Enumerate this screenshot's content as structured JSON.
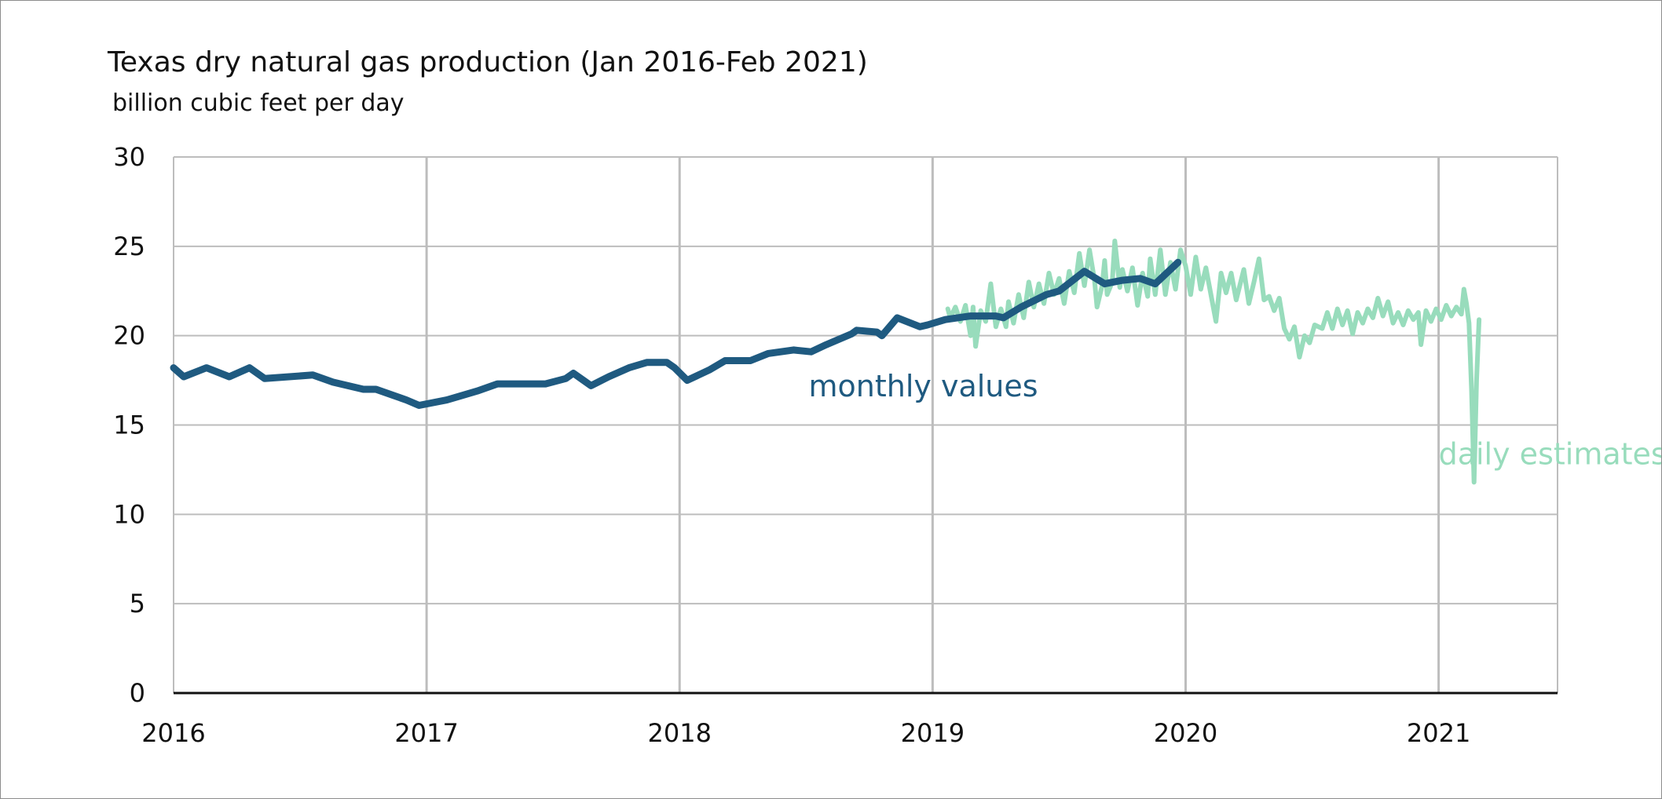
{
  "chart_data": {
    "type": "line",
    "title": "Texas dry natural gas production (Jan 2016-Feb 2021)",
    "subtitle": "billion cubic feet per day",
    "xlabel": "",
    "ylabel": "",
    "xlim": [
      2016.0,
      2021.47
    ],
    "ylim": [
      0,
      30
    ],
    "x_ticks": [
      "2016",
      "2017",
      "2018",
      "2019",
      "2020",
      "2021"
    ],
    "y_ticks": [
      "0",
      "5",
      "10",
      "15",
      "20",
      "25",
      "30"
    ],
    "grid": true,
    "colors": {
      "monthly": "#1f5a80",
      "daily": "#98dcbc",
      "grid": "#bdbdbd",
      "axis": "#111111"
    },
    "annotations": [
      {
        "text": "monthly values",
        "series": "monthly",
        "x": 2018.51,
        "y": 16.6
      },
      {
        "text": "daily estimates",
        "series": "daily",
        "x": 2021.0,
        "y": 12.8
      }
    ],
    "series": [
      {
        "key": "monthly",
        "points": [
          [
            2016.0,
            18.2
          ],
          [
            2016.04,
            17.7
          ],
          [
            2016.13,
            18.2
          ],
          [
            2016.22,
            17.7
          ],
          [
            2016.3,
            18.2
          ],
          [
            2016.36,
            17.6
          ],
          [
            2016.55,
            17.8
          ],
          [
            2016.63,
            17.4
          ],
          [
            2016.75,
            17.0
          ],
          [
            2016.8,
            17.0
          ],
          [
            2016.92,
            16.4
          ],
          [
            2016.97,
            16.1
          ],
          [
            2017.08,
            16.4
          ],
          [
            2017.2,
            16.9
          ],
          [
            2017.28,
            17.3
          ],
          [
            2017.35,
            17.3
          ],
          [
            2017.47,
            17.3
          ],
          [
            2017.55,
            17.6
          ],
          [
            2017.58,
            17.9
          ],
          [
            2017.62,
            17.5
          ],
          [
            2017.65,
            17.2
          ],
          [
            2017.72,
            17.7
          ],
          [
            2017.8,
            18.2
          ],
          [
            2017.87,
            18.5
          ],
          [
            2017.95,
            18.5
          ],
          [
            2017.98,
            18.2
          ],
          [
            2018.03,
            17.5
          ],
          [
            2018.12,
            18.1
          ],
          [
            2018.18,
            18.6
          ],
          [
            2018.28,
            18.6
          ],
          [
            2018.35,
            19.0
          ],
          [
            2018.45,
            19.2
          ],
          [
            2018.52,
            19.1
          ],
          [
            2018.58,
            19.5
          ],
          [
            2018.68,
            20.1
          ],
          [
            2018.7,
            20.3
          ],
          [
            2018.78,
            20.2
          ],
          [
            2018.8,
            20.0
          ],
          [
            2018.86,
            21.0
          ],
          [
            2018.95,
            20.5
          ],
          [
            2018.98,
            20.6
          ],
          [
            2019.05,
            20.9
          ],
          [
            2019.15,
            21.1
          ],
          [
            2019.25,
            21.1
          ],
          [
            2019.28,
            21.0
          ],
          [
            2019.35,
            21.6
          ],
          [
            2019.45,
            22.3
          ],
          [
            2019.5,
            22.5
          ],
          [
            2019.6,
            23.6
          ],
          [
            2019.68,
            22.9
          ],
          [
            2019.75,
            23.1
          ],
          [
            2019.82,
            23.2
          ],
          [
            2019.88,
            22.9
          ],
          [
            2019.97,
            24.1
          ]
        ]
      },
      {
        "key": "daily",
        "points": [
          [
            2019.06,
            21.5
          ],
          [
            2019.07,
            21.0
          ],
          [
            2019.09,
            21.6
          ],
          [
            2019.11,
            20.8
          ],
          [
            2019.13,
            21.7
          ],
          [
            2019.15,
            20.0
          ],
          [
            2019.16,
            21.6
          ],
          [
            2019.17,
            19.4
          ],
          [
            2019.19,
            21.4
          ],
          [
            2019.21,
            20.8
          ],
          [
            2019.23,
            22.9
          ],
          [
            2019.25,
            20.5
          ],
          [
            2019.27,
            21.5
          ],
          [
            2019.29,
            20.5
          ],
          [
            2019.3,
            21.9
          ],
          [
            2019.32,
            20.7
          ],
          [
            2019.34,
            22.3
          ],
          [
            2019.36,
            21.0
          ],
          [
            2019.38,
            23.0
          ],
          [
            2019.4,
            21.6
          ],
          [
            2019.42,
            22.9
          ],
          [
            2019.44,
            21.8
          ],
          [
            2019.46,
            23.5
          ],
          [
            2019.48,
            22.3
          ],
          [
            2019.5,
            23.2
          ],
          [
            2019.52,
            21.8
          ],
          [
            2019.54,
            23.6
          ],
          [
            2019.56,
            22.4
          ],
          [
            2019.58,
            24.6
          ],
          [
            2019.6,
            22.8
          ],
          [
            2019.62,
            24.8
          ],
          [
            2019.64,
            23.1
          ],
          [
            2019.65,
            21.6
          ],
          [
            2019.67,
            22.8
          ],
          [
            2019.68,
            24.2
          ],
          [
            2019.69,
            22.3
          ],
          [
            2019.71,
            23.0
          ],
          [
            2019.72,
            25.3
          ],
          [
            2019.74,
            22.7
          ],
          [
            2019.75,
            23.7
          ],
          [
            2019.77,
            22.5
          ],
          [
            2019.79,
            23.8
          ],
          [
            2019.81,
            21.7
          ],
          [
            2019.83,
            23.5
          ],
          [
            2019.85,
            22.2
          ],
          [
            2019.86,
            24.3
          ],
          [
            2019.88,
            22.3
          ],
          [
            2019.9,
            24.8
          ],
          [
            2019.92,
            22.3
          ],
          [
            2019.94,
            24.1
          ],
          [
            2019.96,
            22.6
          ],
          [
            2019.98,
            24.8
          ],
          [
            2020.0,
            23.9
          ],
          [
            2020.02,
            22.3
          ],
          [
            2020.04,
            24.4
          ],
          [
            2020.06,
            22.6
          ],
          [
            2020.08,
            23.8
          ],
          [
            2020.1,
            22.3
          ],
          [
            2020.12,
            20.8
          ],
          [
            2020.14,
            23.5
          ],
          [
            2020.16,
            22.4
          ],
          [
            2020.18,
            23.5
          ],
          [
            2020.2,
            22.0
          ],
          [
            2020.23,
            23.7
          ],
          [
            2020.25,
            21.8
          ],
          [
            2020.27,
            23.0
          ],
          [
            2020.29,
            24.3
          ],
          [
            2020.31,
            22.0
          ],
          [
            2020.33,
            22.2
          ],
          [
            2020.35,
            21.4
          ],
          [
            2020.37,
            22.1
          ],
          [
            2020.39,
            20.4
          ],
          [
            2020.41,
            19.8
          ],
          [
            2020.43,
            20.5
          ],
          [
            2020.45,
            18.8
          ],
          [
            2020.47,
            20.0
          ],
          [
            2020.49,
            19.6
          ],
          [
            2020.51,
            20.6
          ],
          [
            2020.54,
            20.4
          ],
          [
            2020.56,
            21.3
          ],
          [
            2020.58,
            20.4
          ],
          [
            2020.6,
            21.5
          ],
          [
            2020.62,
            20.6
          ],
          [
            2020.64,
            21.4
          ],
          [
            2020.66,
            20.1
          ],
          [
            2020.68,
            21.3
          ],
          [
            2020.7,
            20.7
          ],
          [
            2020.72,
            21.5
          ],
          [
            2020.74,
            21.0
          ],
          [
            2020.76,
            22.1
          ],
          [
            2020.78,
            21.1
          ],
          [
            2020.8,
            21.9
          ],
          [
            2020.82,
            20.7
          ],
          [
            2020.84,
            21.3
          ],
          [
            2020.86,
            20.6
          ],
          [
            2020.88,
            21.4
          ],
          [
            2020.9,
            20.9
          ],
          [
            2020.92,
            21.3
          ],
          [
            2020.93,
            19.5
          ],
          [
            2020.95,
            21.4
          ],
          [
            2020.97,
            20.8
          ],
          [
            2020.99,
            21.5
          ],
          [
            2021.01,
            20.9
          ],
          [
            2021.03,
            21.7
          ],
          [
            2021.05,
            21.1
          ],
          [
            2021.07,
            21.6
          ],
          [
            2021.09,
            21.2
          ],
          [
            2021.1,
            22.6
          ],
          [
            2021.11,
            21.8
          ],
          [
            2021.12,
            20.7
          ],
          [
            2021.13,
            17.0
          ],
          [
            2021.14,
            11.8
          ],
          [
            2021.15,
            17.5
          ],
          [
            2021.16,
            20.9
          ]
        ]
      }
    ]
  }
}
